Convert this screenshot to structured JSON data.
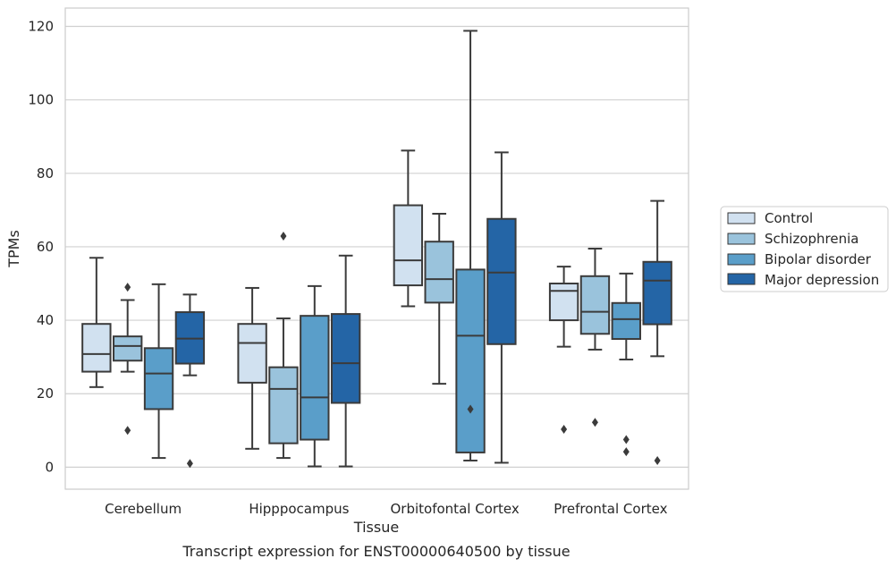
{
  "chart_data": {
    "type": "box",
    "caption": "Transcript expression for ENST00000640500 by tissue",
    "xlabel": "Tissue",
    "ylabel": "TPMs",
    "ylim": [
      -6,
      125
    ],
    "yticks": [
      0,
      20,
      40,
      60,
      80,
      100,
      120
    ],
    "grid": "horizontal",
    "legend_position": "right",
    "categories": [
      "Cerebellum",
      "Hipppocampus",
      "Orbitofontal Cortex",
      "Prefrontal Cortex"
    ],
    "series": [
      {
        "name": "Control",
        "color": "#d1e1f0",
        "boxes": [
          {
            "whislo": 21.8,
            "q1": 26.0,
            "med": 30.8,
            "q3": 39.0,
            "whishi": 57.0,
            "fliers": []
          },
          {
            "whislo": 5.0,
            "q1": 23.0,
            "med": 33.8,
            "q3": 39.0,
            "whishi": 48.8,
            "fliers": []
          },
          {
            "whislo": 43.8,
            "q1": 49.5,
            "med": 56.3,
            "q3": 71.3,
            "whishi": 86.2,
            "fliers": []
          },
          {
            "whislo": 32.8,
            "q1": 40.0,
            "med": 48.0,
            "q3": 50.0,
            "whishi": 54.6,
            "fliers": [
              10.3
            ]
          }
        ]
      },
      {
        "name": "Schizophrenia",
        "color": "#9ac3dc",
        "boxes": [
          {
            "whislo": 26.0,
            "q1": 29.0,
            "med": 33.0,
            "q3": 35.6,
            "whishi": 45.5,
            "fliers": [
              49.0,
              10.0
            ]
          },
          {
            "whislo": 2.5,
            "q1": 6.5,
            "med": 21.3,
            "q3": 27.2,
            "whishi": 40.5,
            "fliers": [
              62.9
            ]
          },
          {
            "whislo": 22.7,
            "q1": 44.8,
            "med": 51.2,
            "q3": 61.4,
            "whishi": 69.0,
            "fliers": []
          },
          {
            "whislo": 32.0,
            "q1": 36.3,
            "med": 42.3,
            "q3": 52.0,
            "whishi": 59.5,
            "fliers": [
              12.2
            ]
          }
        ]
      },
      {
        "name": "Bipolar disorder",
        "color": "#5a9ec9",
        "boxes": [
          {
            "whislo": 2.5,
            "q1": 15.8,
            "med": 25.5,
            "q3": 32.4,
            "whishi": 49.8,
            "fliers": []
          },
          {
            "whislo": 0.2,
            "q1": 7.5,
            "med": 19.0,
            "q3": 41.2,
            "whishi": 49.3,
            "fliers": []
          },
          {
            "whislo": 1.8,
            "q1": 4.0,
            "med": 35.8,
            "q3": 53.8,
            "whishi": 118.8,
            "fliers": [
              15.8
            ]
          },
          {
            "whislo": 29.3,
            "q1": 34.9,
            "med": 40.3,
            "q3": 44.7,
            "whishi": 52.7,
            "fliers": [
              7.5,
              4.2
            ]
          }
        ]
      },
      {
        "name": "Major depression",
        "color": "#2465a6",
        "boxes": [
          {
            "whislo": 25.0,
            "q1": 28.2,
            "med": 35.0,
            "q3": 42.2,
            "whishi": 47.0,
            "fliers": [
              1.0
            ]
          },
          {
            "whislo": 0.2,
            "q1": 17.5,
            "med": 28.3,
            "q3": 41.7,
            "whishi": 57.6,
            "fliers": []
          },
          {
            "whislo": 1.2,
            "q1": 33.5,
            "med": 53.0,
            "q3": 67.6,
            "whishi": 85.7,
            "fliers": []
          },
          {
            "whislo": 30.2,
            "q1": 38.9,
            "med": 50.8,
            "q3": 55.9,
            "whishi": 72.5,
            "fliers": [
              1.8
            ]
          }
        ]
      }
    ]
  }
}
